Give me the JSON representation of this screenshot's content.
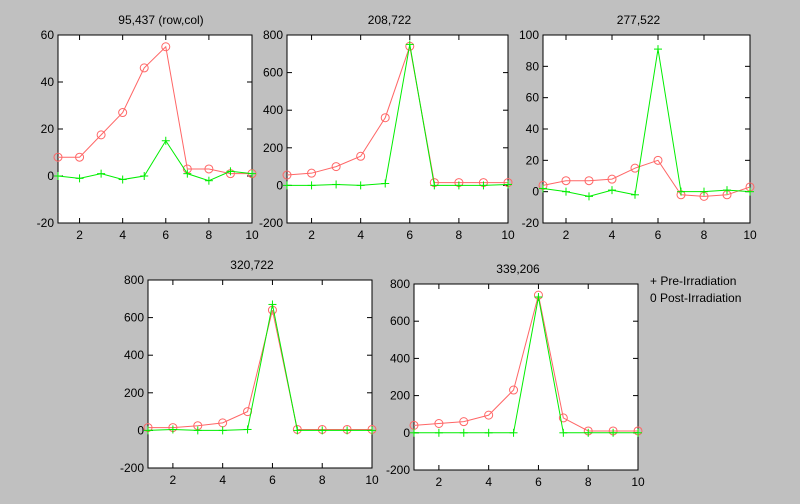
{
  "figure": {
    "background": "#c0c0c0",
    "plot_background": "#ffffff",
    "pre_color": "#00ee00",
    "post_color": "#ff6666"
  },
  "legend": {
    "pre_label": "+ Pre-Irradiation",
    "post_label": "0 Post-Irradiation"
  },
  "chart_data": [
    {
      "type": "line",
      "title": "95,437  (row,col)",
      "x": [
        1,
        2,
        3,
        4,
        5,
        6,
        7,
        8,
        9,
        10
      ],
      "xlim": [
        1,
        10
      ],
      "ylim": [
        -20,
        60
      ],
      "xticks": [
        2,
        4,
        6,
        8,
        10
      ],
      "yticks": [
        -20,
        0,
        20,
        40,
        60
      ],
      "series": [
        {
          "name": "Pre-Irradiation",
          "marker": "+",
          "values": [
            0,
            -1,
            1,
            -1.5,
            0,
            15,
            1,
            -2,
            2,
            1
          ]
        },
        {
          "name": "Post-Irradiation",
          "marker": "o",
          "values": [
            8,
            8,
            17.5,
            27,
            46,
            55,
            3,
            3,
            1,
            1
          ]
        }
      ]
    },
    {
      "type": "line",
      "title": "208,722",
      "x": [
        1,
        2,
        3,
        4,
        5,
        6,
        7,
        8,
        9,
        10
      ],
      "xlim": [
        1,
        10
      ],
      "ylim": [
        -200,
        800
      ],
      "xticks": [
        2,
        4,
        6,
        8,
        10
      ],
      "yticks": [
        -200,
        0,
        200,
        400,
        600,
        800
      ],
      "series": [
        {
          "name": "Pre-Irradiation",
          "marker": "+",
          "values": [
            0,
            0,
            5,
            0,
            10,
            750,
            0,
            0,
            0,
            5
          ]
        },
        {
          "name": "Post-Irradiation",
          "marker": "o",
          "values": [
            55,
            65,
            100,
            155,
            360,
            740,
            15,
            15,
            15,
            15
          ]
        }
      ]
    },
    {
      "type": "line",
      "title": "277,522",
      "x": [
        1,
        2,
        3,
        4,
        5,
        6,
        7,
        8,
        9,
        10
      ],
      "xlim": [
        1,
        10
      ],
      "ylim": [
        -20,
        100
      ],
      "xticks": [
        2,
        4,
        6,
        8,
        10
      ],
      "yticks": [
        -20,
        0,
        20,
        40,
        60,
        80,
        100
      ],
      "series": [
        {
          "name": "Pre-Irradiation",
          "marker": "+",
          "values": [
            2,
            0,
            -3,
            1,
            -2,
            91,
            0,
            0,
            1,
            0
          ]
        },
        {
          "name": "Post-Irradiation",
          "marker": "o",
          "values": [
            4,
            7,
            7,
            8,
            15,
            20,
            -2,
            -3,
            -2,
            3
          ]
        }
      ]
    },
    {
      "type": "line",
      "title": "320,722",
      "x": [
        1,
        2,
        3,
        4,
        5,
        6,
        7,
        8,
        9,
        10
      ],
      "xlim": [
        1,
        10
      ],
      "ylim": [
        -200,
        800
      ],
      "xticks": [
        2,
        4,
        6,
        8,
        10
      ],
      "yticks": [
        -200,
        0,
        200,
        400,
        600,
        800
      ],
      "series": [
        {
          "name": "Pre-Irradiation",
          "marker": "+",
          "values": [
            0,
            5,
            0,
            0,
            5,
            670,
            0,
            0,
            0,
            0
          ]
        },
        {
          "name": "Post-Irradiation",
          "marker": "o",
          "values": [
            15,
            15,
            25,
            40,
            100,
            640,
            5,
            5,
            5,
            5
          ]
        }
      ]
    },
    {
      "type": "line",
      "title": "339,206",
      "x": [
        1,
        2,
        3,
        4,
        5,
        6,
        7,
        8,
        9,
        10
      ],
      "xlim": [
        1,
        10
      ],
      "ylim": [
        -200,
        800
      ],
      "xticks": [
        2,
        4,
        6,
        8,
        10
      ],
      "yticks": [
        -200,
        0,
        200,
        400,
        600,
        800
      ],
      "series": [
        {
          "name": "Pre-Irradiation",
          "marker": "+",
          "values": [
            0,
            0,
            0,
            0,
            0,
            730,
            0,
            0,
            0,
            0
          ]
        },
        {
          "name": "Post-Irradiation",
          "marker": "o",
          "values": [
            40,
            50,
            60,
            95,
            230,
            740,
            80,
            10,
            10,
            10
          ]
        }
      ]
    }
  ]
}
